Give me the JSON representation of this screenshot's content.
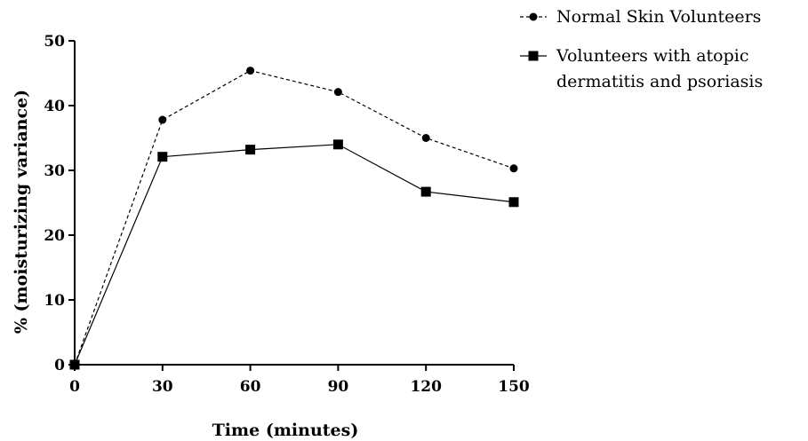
{
  "chart_data": {
    "type": "line",
    "title": "",
    "xlabel": "Time (minutes)",
    "ylabel": "% (moisturizing variance)",
    "x": [
      0,
      30,
      60,
      90,
      120,
      150
    ],
    "x_ticks": [
      "0",
      "30",
      "60",
      "90",
      "120",
      "150"
    ],
    "y_ticks": [
      "0",
      "10",
      "20",
      "30",
      "40",
      "50"
    ],
    "xlim": [
      0,
      150
    ],
    "ylim": [
      0,
      50
    ],
    "grid": false,
    "legend_position": "top-right",
    "series": [
      {
        "name": "Normal Skin Volunteers",
        "legend_lines": [
          "Normal Skin Volunteers"
        ],
        "values": [
          0,
          37.8,
          45.4,
          42.1,
          35.0,
          30.3
        ],
        "marker": "circle",
        "line_style": "dashed",
        "color": "#000000"
      },
      {
        "name": "Volunteers with atopic dermatitis and psoriasis",
        "legend_lines": [
          "Volunteers with atopic",
          "dermatitis and psoriasis"
        ],
        "values": [
          0,
          32.1,
          33.2,
          34.0,
          26.7,
          25.1
        ],
        "marker": "square",
        "line_style": "solid",
        "color": "#000000"
      }
    ]
  }
}
